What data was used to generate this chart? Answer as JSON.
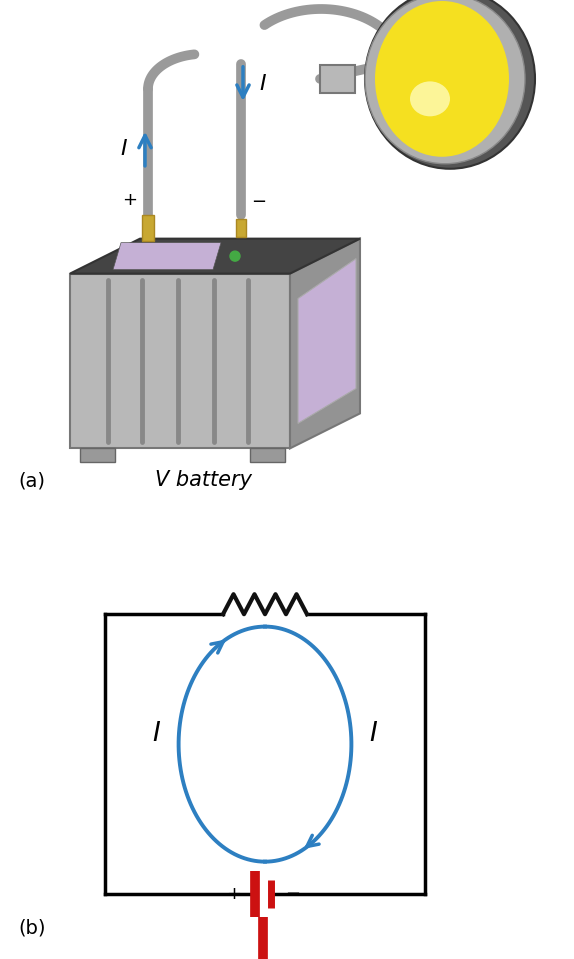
{
  "panel_a_label": "(a)",
  "panel_b_label": "(b)",
  "v_battery_label": "V battery",
  "headlight_label": "Headlight",
  "current_label": "I",
  "plus_label": "+",
  "minus_label": "−",
  "v_label": "V",
  "arrow_color": "#2d7fc1",
  "wire_color": "#9a9a9a",
  "batt_front_color": "#b8b8b8",
  "batt_right_color": "#939393",
  "batt_top_color": "#444444",
  "batt_window_color": "#c5b0d5",
  "batt_post_color": "#c8a832",
  "batt_rib_color": "#888888",
  "batt_foot_color": "#888888",
  "green_dot_color": "#44aa44",
  "hl_silver_color": "#b0b0b0",
  "hl_dark_color": "#555555",
  "hl_yellow_color": "#f5e020",
  "hl_neck_color": "#aaaaaa",
  "resistor_color": "#111111",
  "circuit_line_color": "#000000",
  "battery_symbol_color": "#cc1111",
  "bg_color": "#ffffff"
}
